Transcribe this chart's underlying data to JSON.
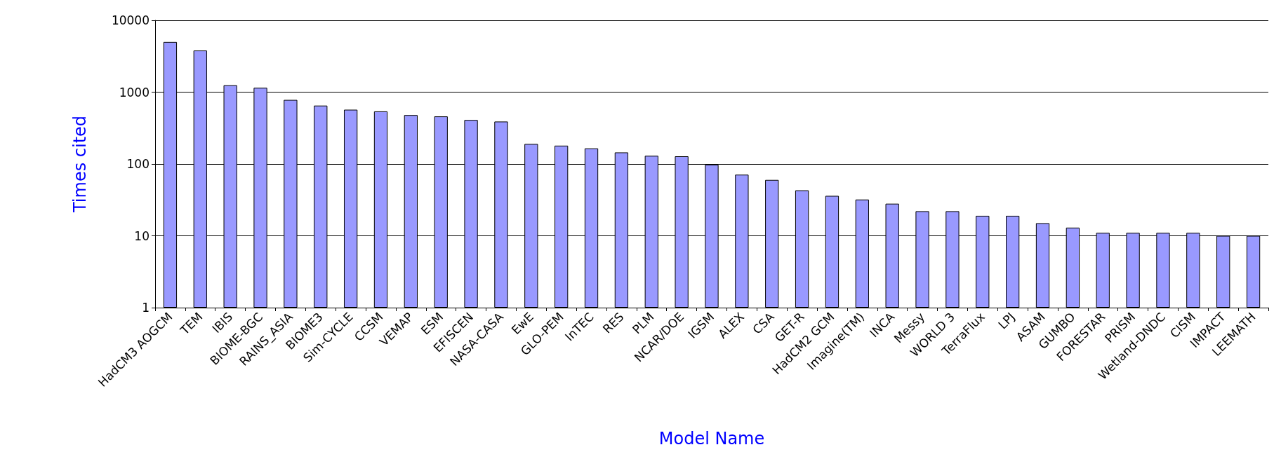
{
  "chart_data": {
    "type": "bar",
    "xlabel": "Model Name",
    "ylabel": "Times cited",
    "categories": [
      "HadCM3 AOGCM",
      "TEM",
      "IBIS",
      "BIOME-BGC",
      "RAINS_ASIA",
      "BIOME3",
      "Sim-CYCLE",
      "CCSM",
      "VEMAP",
      "ESM",
      "EFISCEN",
      "NASA-CASA",
      "EwE",
      "GLO-PEM",
      "InTEC",
      "RES",
      "PLM",
      "NCAR/DOE",
      "IGSM",
      "ALEX",
      "CSA",
      "GET-R",
      "HadCM2 GCM",
      "Imagine(TM)",
      "INCA",
      "Messy",
      "WORLD 3",
      "TerraFlux",
      "LPJ",
      "ASAM",
      "GUMBO",
      "FORESTAR",
      "PRISM",
      "Wetland-DNDC",
      "CISM",
      "IMPACT",
      "LEEMATH"
    ],
    "values": [
      5000,
      3800,
      1250,
      1150,
      780,
      650,
      570,
      540,
      480,
      460,
      410,
      390,
      190,
      180,
      165,
      145,
      130,
      128,
      98,
      71,
      60,
      43,
      36,
      32,
      28,
      22,
      22,
      19,
      19,
      15,
      13,
      11,
      11,
      11,
      11,
      10,
      10
    ],
    "color": "#9999ff",
    "log": "y",
    "ylim": [
      1,
      10000
    ],
    "yticks": [
      1,
      10,
      100,
      1000,
      10000
    ],
    "grid": "y"
  }
}
